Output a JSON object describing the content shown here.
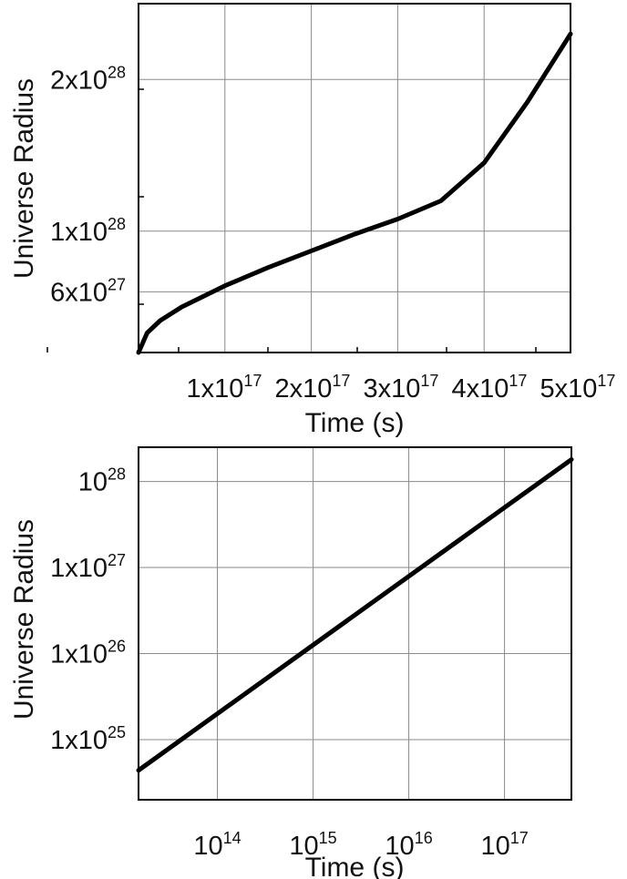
{
  "chart_data": [
    {
      "type": "line",
      "xlabel": "Time (s)",
      "ylabel": "Universe Radius",
      "xscale": "linear",
      "yscale": "linear",
      "grid": true,
      "xlim": [
        0,
        5e+17
      ],
      "ylim": [
        2e+27,
        2.5e+28
      ],
      "xtick_values": [
        1e+17,
        2e+17,
        3e+17,
        4e+17,
        5e+17
      ],
      "ytick_values": [
        6e+27,
        1e+28,
        2e+28
      ],
      "xticks": [
        {
          "mant": "1x10",
          "exp": "17"
        },
        {
          "mant": "2x10",
          "exp": "17"
        },
        {
          "mant": "3x10",
          "exp": "17"
        },
        {
          "mant": "4x10",
          "exp": "17"
        },
        {
          "mant": "5x10",
          "exp": "17"
        }
      ],
      "yticks": [
        {
          "mant": "6x10",
          "exp": "27"
        },
        {
          "mant": "1x10",
          "exp": "28"
        },
        {
          "mant": "2x10",
          "exp": "28"
        }
      ],
      "series": [
        {
          "x": [
            0,
            1e+16,
            2.5e+16,
            5e+16,
            7.5e+16,
            1e+17,
            1.5e+17,
            2e+17,
            2.5e+17,
            3e+17,
            3.5e+17,
            4e+17,
            4.5e+17,
            5e+17
          ],
          "y": [
            2e+27,
            3.3e+27,
            4.1e+27,
            5e+27,
            5.7e+27,
            6.4e+27,
            7.6e+27,
            8.7e+27,
            9.8e+27,
            1.08e+28,
            1.2e+28,
            1.45e+28,
            1.85e+28,
            2.3e+28
          ]
        }
      ]
    },
    {
      "type": "line",
      "xlabel": "Time (s)",
      "ylabel": "Universe Radius",
      "xscale": "log",
      "yscale": "log",
      "grid": true,
      "xlim": [
        15000000000000.0,
        5e+17
      ],
      "ylim": [
        2e+24,
        2.5e+28
      ],
      "xtick_values": [
        100000000000000.0,
        1000000000000000.0,
        1e+16,
        1e+17
      ],
      "ytick_values": [
        1e+25,
        1e+26,
        1e+27,
        1e+28
      ],
      "xticks": [
        {
          "mant": "10",
          "exp": "14"
        },
        {
          "mant": "10",
          "exp": "15"
        },
        {
          "mant": "10",
          "exp": "16"
        },
        {
          "mant": "10",
          "exp": "17"
        }
      ],
      "yticks": [
        {
          "mant": "1x10",
          "exp": "25"
        },
        {
          "mant": "1x10",
          "exp": "26"
        },
        {
          "mant": "1x10",
          "exp": "27"
        },
        {
          "mant": "10",
          "exp": "28"
        }
      ],
      "series": [
        {
          "x": [
            15000000000000.0,
            5e+17
          ],
          "y": [
            4.4e+24,
            1.8e+28
          ]
        }
      ]
    }
  ]
}
